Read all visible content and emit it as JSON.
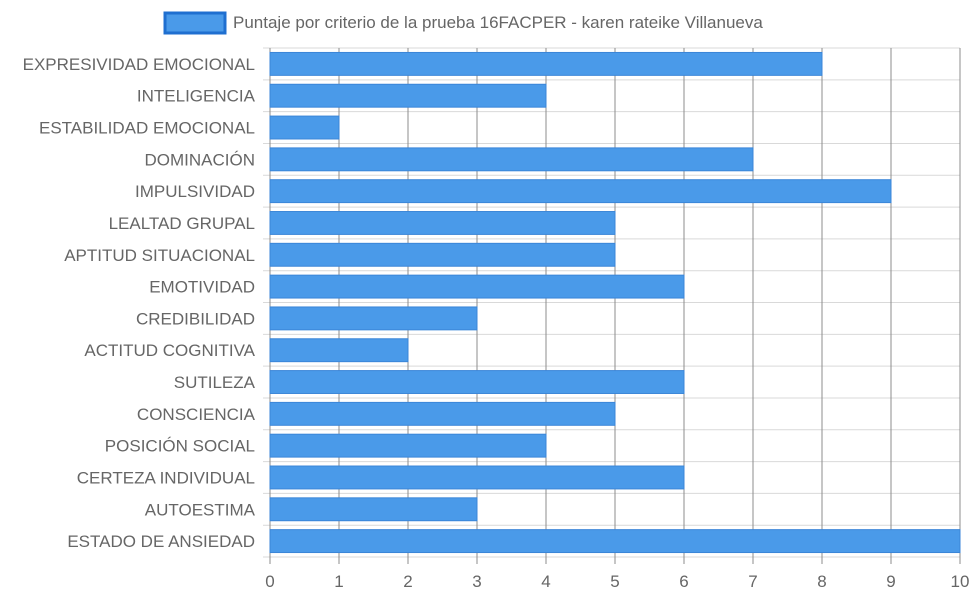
{
  "chart_data": {
    "type": "bar",
    "orientation": "horizontal",
    "categories": [
      "EXPRESIVIDAD EMOCIONAL",
      "INTELIGENCIA",
      "ESTABILIDAD EMOCIONAL",
      "DOMINACIÓN",
      "IMPULSIVIDAD",
      "LEALTAD GRUPAL",
      "APTITUD SITUACIONAL",
      "EMOTIVIDAD",
      "CREDIBILIDAD",
      "ACTITUD COGNITIVA",
      "SUTILEZA",
      "CONSCIENCIA",
      "POSICIÓN SOCIAL",
      "CERTEZA INDIVIDUAL",
      "AUTOESTIMA",
      "ESTADO DE ANSIEDAD"
    ],
    "series": [
      {
        "name": "Puntaje por criterio de la prueba 16FACPER - karen rateike Villanueva",
        "values": [
          8,
          4,
          1,
          7,
          9,
          5,
          5,
          6,
          3,
          2,
          6,
          5,
          4,
          6,
          3,
          10
        ]
      }
    ],
    "xticks": [
      "0",
      "1",
      "2",
      "3",
      "4",
      "5",
      "6",
      "7",
      "8",
      "9",
      "10"
    ],
    "xlim": [
      0,
      10
    ],
    "grid": true,
    "legend_position": "top-center",
    "colors": {
      "bar_fill": "#4a9ae9",
      "bar_stroke": "#3b86d8",
      "grid_line": "#d9d9d9",
      "grid_line_major": "#8c8c8c",
      "axis_text": "#666666"
    }
  }
}
